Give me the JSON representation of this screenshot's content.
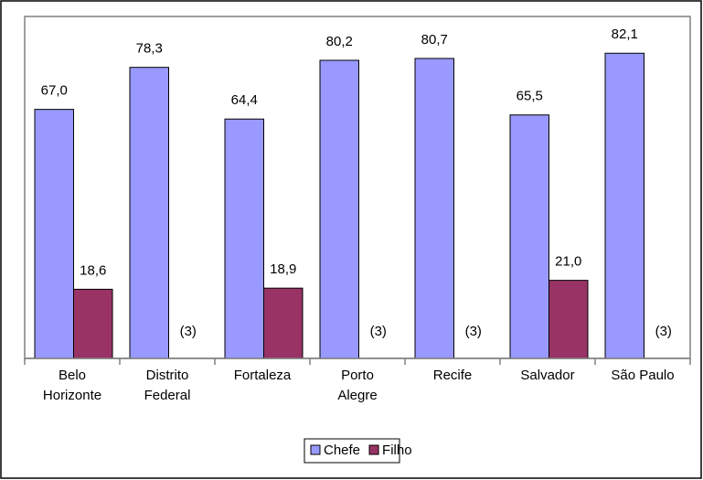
{
  "chart_data": {
    "type": "bar",
    "categories": [
      "Belo Horizonte",
      "Distrito Federal",
      "Fortaleza",
      "Porto Alegre",
      "Recife",
      "Salvador",
      "São Paulo"
    ],
    "series": [
      {
        "name": "Chefe",
        "color": "#9999ff",
        "values": [
          67.0,
          78.3,
          64.4,
          80.2,
          80.7,
          65.5,
          82.1
        ],
        "value_labels": [
          "67,0",
          "78,3",
          "64,4",
          "80,2",
          "80,7",
          "65,5",
          "82,1"
        ]
      },
      {
        "name": "Filho",
        "color": "#993366",
        "values": [
          18.6,
          null,
          18.9,
          null,
          null,
          21.0,
          null
        ],
        "value_labels": [
          "18,6",
          "(3)",
          "18,9",
          "(3)",
          "(3)",
          "21,0",
          "(3)"
        ]
      }
    ],
    "ylim": [
      0,
      92
    ],
    "legend": "bottom"
  }
}
